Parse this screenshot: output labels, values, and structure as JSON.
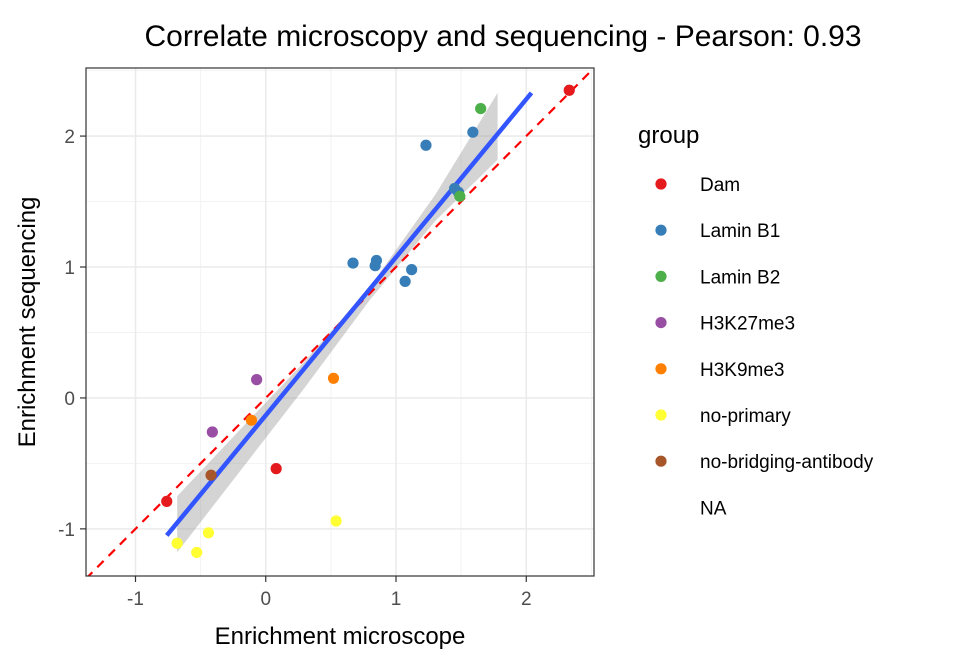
{
  "chart_data": {
    "type": "scatter",
    "title": "Correlate microscopy and sequencing - Pearson: 0.93",
    "xlabel": "Enrichment microscope",
    "ylabel": "Enrichment sequencing",
    "xlim": [
      -1.38,
      2.52
    ],
    "ylim": [
      -1.36,
      2.52
    ],
    "x_ticks": [
      -1,
      0,
      1,
      2
    ],
    "y_ticks": [
      -1,
      0,
      1,
      2
    ],
    "grid": true,
    "legend": {
      "title": "group",
      "position": "right",
      "entries": [
        {
          "label": "Dam",
          "color": "#e41a1c"
        },
        {
          "label": "Lamin B1",
          "color": "#377eb8"
        },
        {
          "label": "Lamin B2",
          "color": "#4daf4a"
        },
        {
          "label": "H3K27me3",
          "color": "#984ea3"
        },
        {
          "label": "H3K9me3",
          "color": "#ff7f00"
        },
        {
          "label": "no-primary",
          "color": "#ffff33"
        },
        {
          "label": "no-bridging-antibody",
          "color": "#a65628"
        },
        {
          "label": "NA",
          "color": ""
        }
      ]
    },
    "points": [
      {
        "x": -0.76,
        "y": -0.79,
        "group": "Dam"
      },
      {
        "x": 0.08,
        "y": -0.54,
        "group": "Dam"
      },
      {
        "x": 2.33,
        "y": 2.35,
        "group": "Dam"
      },
      {
        "x": 0.67,
        "y": 1.03,
        "group": "Lamin B1"
      },
      {
        "x": 0.84,
        "y": 1.01,
        "group": "Lamin B1"
      },
      {
        "x": 0.85,
        "y": 1.05,
        "group": "Lamin B1"
      },
      {
        "x": 1.07,
        "y": 0.89,
        "group": "Lamin B1"
      },
      {
        "x": 1.12,
        "y": 0.98,
        "group": "Lamin B1"
      },
      {
        "x": 1.23,
        "y": 1.93,
        "group": "Lamin B1"
      },
      {
        "x": 1.45,
        "y": 1.6,
        "group": "Lamin B1"
      },
      {
        "x": 1.48,
        "y": 1.57,
        "group": "Lamin B1"
      },
      {
        "x": 1.59,
        "y": 2.03,
        "group": "Lamin B1"
      },
      {
        "x": 1.49,
        "y": 1.54,
        "group": "Lamin B2"
      },
      {
        "x": 1.65,
        "y": 2.21,
        "group": "Lamin B2"
      },
      {
        "x": -0.41,
        "y": -0.26,
        "group": "H3K27me3"
      },
      {
        "x": -0.07,
        "y": 0.14,
        "group": "H3K27me3"
      },
      {
        "x": -0.11,
        "y": -0.17,
        "group": "H3K9me3"
      },
      {
        "x": 0.52,
        "y": 0.15,
        "group": "H3K9me3"
      },
      {
        "x": -0.68,
        "y": -1.11,
        "group": "no-primary"
      },
      {
        "x": -0.53,
        "y": -1.18,
        "group": "no-primary"
      },
      {
        "x": -0.44,
        "y": -1.03,
        "group": "no-primary"
      },
      {
        "x": 0.54,
        "y": -0.94,
        "group": "no-primary"
      },
      {
        "x": -0.42,
        "y": -0.59,
        "group": "no-bridging-antibody"
      }
    ],
    "fit_line": {
      "color": "#3355ff",
      "x": [
        -0.76,
        2.04
      ],
      "y": [
        -1.05,
        2.33
      ]
    },
    "confidence_band": [
      {
        "x": -0.68,
        "lower": -1.18,
        "upper": -0.75
      },
      {
        "x": 0.3,
        "lower": 0.08,
        "upper": 0.28
      },
      {
        "x": 0.8,
        "lower": 0.75,
        "upper": 0.85
      },
      {
        "x": 1.3,
        "lower": 1.35,
        "upper": 1.55
      },
      {
        "x": 1.78,
        "lower": 1.82,
        "upper": 2.33
      }
    ],
    "reference_line": {
      "color": "#ff0000",
      "style": "dashed",
      "slope": 1,
      "intercept": 0
    }
  }
}
